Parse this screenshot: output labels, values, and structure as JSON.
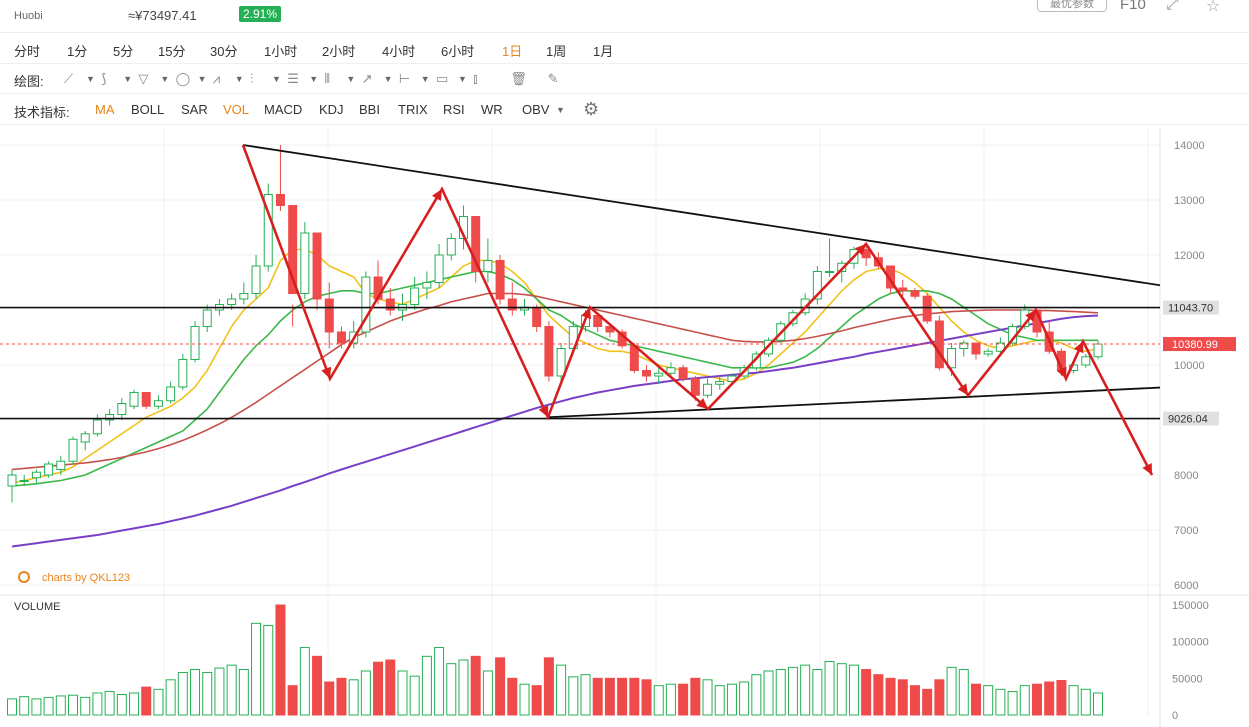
{
  "header": {
    "exchange": "Huobi",
    "cny_price": "≈¥73497.41",
    "change": "2.91%",
    "button_label": "最优参数",
    "f10_label": "F10"
  },
  "intervals": {
    "items": [
      "分时",
      "1分",
      "5分",
      "15分",
      "30分",
      "1小时",
      "2小时",
      "4小时",
      "6小时",
      "1日",
      "1周",
      "1月"
    ],
    "active": "1日"
  },
  "drawing": {
    "label": "绘图:",
    "tools": [
      "line-tool-icon",
      "ray-tool-icon",
      "polyline-tool-icon",
      "shape-tool-icon",
      "pattern-tool-icon",
      "fork-tool-icon",
      "fib-tool-icon",
      "channel-tool-icon",
      "arrow-tool-icon",
      "range-tool-icon",
      "comment-tool-icon",
      "bars-tool-icon",
      "trash-icon",
      "eraser-icon"
    ]
  },
  "indicators": {
    "label": "技术指标:",
    "items": [
      "MA",
      "BOLL",
      "SAR",
      "VOL",
      "MACD",
      "KDJ",
      "BBI",
      "TRIX",
      "RSI",
      "WR",
      "OBV"
    ],
    "active": [
      "MA",
      "VOL"
    ]
  },
  "colors": {
    "up": "#26b055",
    "down": "#ef4b4b",
    "ma5": "#f2c21b",
    "ma10": "#3cb84a",
    "ma30": "#c8504a",
    "ma60": "#7a3fc8",
    "annotation": "#d81f1f",
    "pattern": "#111111"
  },
  "chart_data": {
    "type": "candlestick",
    "watermark": "charts by QKL123",
    "price_axis": {
      "ticks": [
        14000,
        13000,
        12000,
        10000,
        8000,
        7000,
        6000
      ],
      "range": [
        5800,
        14300
      ]
    },
    "price_labels": [
      {
        "value": 11043.7,
        "text": "11043.70",
        "kind": "resistance"
      },
      {
        "value": 10380.99,
        "text": "10380.99",
        "kind": "current"
      },
      {
        "value": 9026.04,
        "text": "9026.04",
        "kind": "support"
      }
    ],
    "volume_axis": {
      "label": "VOLUME",
      "ticks": [
        150000,
        100000,
        50000,
        0
      ],
      "range": [
        0,
        150000
      ]
    },
    "candles_ohlc": [
      [
        7800,
        8100,
        7500,
        8000
      ],
      [
        7900,
        8000,
        7800,
        7900
      ],
      [
        7950,
        8100,
        7850,
        8050
      ],
      [
        8000,
        8250,
        7950,
        8200
      ],
      [
        8100,
        8350,
        8000,
        8250
      ],
      [
        8250,
        8700,
        8200,
        8650
      ],
      [
        8600,
        8800,
        8450,
        8750
      ],
      [
        8750,
        9100,
        8700,
        9000
      ],
      [
        9000,
        9200,
        8900,
        9100
      ],
      [
        9100,
        9400,
        9000,
        9300
      ],
      [
        9250,
        9550,
        9200,
        9500
      ],
      [
        9500,
        9400,
        9200,
        9250
      ],
      [
        9250,
        9450,
        9200,
        9350
      ],
      [
        9350,
        9700,
        9300,
        9600
      ],
      [
        9600,
        10200,
        9550,
        10100
      ],
      [
        10100,
        10800,
        10050,
        10700
      ],
      [
        10700,
        11100,
        10600,
        11000
      ],
      [
        11000,
        11200,
        10900,
        11100
      ],
      [
        11100,
        11300,
        11000,
        11200
      ],
      [
        11200,
        11500,
        11100,
        11300
      ],
      [
        11300,
        12000,
        11200,
        11800
      ],
      [
        11800,
        13300,
        11700,
        13100
      ],
      [
        13100,
        14000,
        12800,
        12900
      ],
      [
        12900,
        11100,
        10700,
        11300
      ],
      [
        11300,
        12600,
        11200,
        12400
      ],
      [
        12400,
        12300,
        11000,
        11200
      ],
      [
        11200,
        11500,
        10300,
        10600
      ],
      [
        10600,
        10700,
        10300,
        10400
      ],
      [
        10400,
        10800,
        10300,
        10600
      ],
      [
        10600,
        11700,
        10500,
        11600
      ],
      [
        11600,
        11900,
        11100,
        11200
      ],
      [
        11200,
        11400,
        10900,
        11000
      ],
      [
        11000,
        11300,
        10800,
        11100
      ],
      [
        11100,
        11600,
        11000,
        11400
      ],
      [
        11400,
        11700,
        11200,
        11500
      ],
      [
        11500,
        12200,
        11400,
        12000
      ],
      [
        12000,
        12400,
        11900,
        12300
      ],
      [
        12300,
        12900,
        12100,
        12700
      ],
      [
        12700,
        12100,
        11500,
        11700
      ],
      [
        11700,
        12300,
        11500,
        11900
      ],
      [
        11900,
        12000,
        11100,
        11200
      ],
      [
        11200,
        11500,
        10900,
        11000
      ],
      [
        11000,
        11200,
        10900,
        11050
      ],
      [
        11050,
        11100,
        10600,
        10700
      ],
      [
        10700,
        10800,
        9700,
        9800
      ],
      [
        9800,
        10400,
        9700,
        10300
      ],
      [
        10300,
        10800,
        10200,
        10700
      ],
      [
        10700,
        11000,
        10600,
        10900
      ],
      [
        10900,
        10950,
        10600,
        10700
      ],
      [
        10700,
        10750,
        10500,
        10600
      ],
      [
        10600,
        10650,
        10300,
        10350
      ],
      [
        10350,
        10400,
        9850,
        9900
      ],
      [
        9900,
        10000,
        9700,
        9800
      ],
      [
        9800,
        9950,
        9650,
        9850
      ],
      [
        9850,
        10050,
        9800,
        9950
      ],
      [
        9950,
        10000,
        9700,
        9750
      ],
      [
        9750,
        9800,
        9350,
        9450
      ],
      [
        9450,
        9750,
        9400,
        9650
      ],
      [
        9650,
        9800,
        9550,
        9700
      ],
      [
        9700,
        9850,
        9650,
        9800
      ],
      [
        9800,
        10000,
        9750,
        9950
      ],
      [
        9950,
        10250,
        9900,
        10200
      ],
      [
        10200,
        10500,
        10150,
        10450
      ],
      [
        10450,
        10800,
        10400,
        10750
      ],
      [
        10750,
        11000,
        10700,
        10950
      ],
      [
        10950,
        11300,
        10900,
        11200
      ],
      [
        11200,
        11800,
        11100,
        11700
      ],
      [
        11700,
        12300,
        11600,
        11700
      ],
      [
        11700,
        11900,
        11500,
        11850
      ],
      [
        11850,
        12150,
        11750,
        12100
      ],
      [
        12100,
        12200,
        11800,
        11950
      ],
      [
        11950,
        12050,
        11750,
        11800
      ],
      [
        11800,
        11650,
        11300,
        11400
      ],
      [
        11400,
        11550,
        11250,
        11350
      ],
      [
        11350,
        11400,
        11200,
        11250
      ],
      [
        11250,
        11300,
        10750,
        10800
      ],
      [
        10800,
        10900,
        9900,
        9950
      ],
      [
        9950,
        10400,
        9800,
        10300
      ],
      [
        10300,
        10450,
        10150,
        10400
      ],
      [
        10400,
        10350,
        10100,
        10200
      ],
      [
        10200,
        10300,
        10150,
        10250
      ],
      [
        10250,
        10500,
        10200,
        10400
      ],
      [
        10400,
        10750,
        10350,
        10700
      ],
      [
        10700,
        11100,
        10650,
        11000
      ],
      [
        11000,
        10950,
        10500,
        10600
      ],
      [
        10600,
        10800,
        10200,
        10250
      ],
      [
        10250,
        10300,
        9800,
        9900
      ],
      [
        9900,
        10100,
        9850,
        10000
      ],
      [
        10000,
        10200,
        9950,
        10150
      ],
      [
        10150,
        10450,
        10100,
        10380.99
      ]
    ],
    "volumes": [
      22000,
      25000,
      22000,
      24000,
      26000,
      27000,
      24000,
      30000,
      32000,
      28000,
      30000,
      38000,
      35000,
      48000,
      58000,
      62000,
      58000,
      64000,
      68000,
      62000,
      125000,
      122000,
      150000,
      40000,
      92000,
      80000,
      45000,
      50000,
      48000,
      60000,
      72000,
      75000,
      60000,
      53000,
      80000,
      92000,
      70000,
      75000,
      80000,
      60000,
      78000,
      50000,
      42000,
      40000,
      78000,
      68000,
      52000,
      55000,
      50000,
      50000,
      50000,
      50000,
      48000,
      40000,
      42000,
      42000,
      50000,
      48000,
      40000,
      42000,
      45000,
      55000,
      60000,
      62000,
      65000,
      68000,
      62000,
      73000,
      70000,
      68000,
      62000,
      55000,
      50000,
      48000,
      40000,
      35000,
      48000,
      65000,
      62000,
      42000,
      40000,
      35000,
      32000,
      40000,
      42000,
      45000,
      47000,
      40000,
      35000,
      30000
    ],
    "moving_averages": [
      {
        "name": "MA5",
        "values": [
          7850,
          7900,
          7950,
          8000,
          8050,
          8150,
          8300,
          8450,
          8600,
          8750,
          8900,
          9050,
          9150,
          9250,
          9400,
          9600,
          9900,
          10300,
          10700,
          11000,
          11200,
          11400,
          11900,
          12100,
          12100,
          12000,
          11800,
          11700,
          11600,
          11300,
          11200,
          11150,
          11100,
          11200,
          11300,
          11400,
          11600,
          11800,
          11900,
          11900,
          11850,
          11700,
          11500,
          11200,
          10900,
          10700,
          10500,
          10400,
          10300,
          10250,
          10250,
          10200,
          10100,
          10000,
          9950,
          9900,
          9850,
          9800,
          9750,
          9700,
          9750,
          9850,
          10000,
          10200,
          10400,
          10600,
          10850,
          11100,
          11350,
          11550,
          11700,
          11750,
          11750,
          11650,
          11500,
          11300,
          11050,
          10800,
          10600,
          10450,
          10350,
          10300,
          10350,
          10400,
          10450,
          10450,
          10400,
          10300,
          10250,
          10300
        ]
      },
      {
        "name": "MA10",
        "values": [
          7800,
          7820,
          7840,
          7870,
          7900,
          7950,
          8000,
          8100,
          8200,
          8300,
          8400,
          8500,
          8600,
          8700,
          8800,
          9000,
          9200,
          9500,
          9800,
          10100,
          10350,
          10550,
          10800,
          11000,
          11150,
          11250,
          11300,
          11350,
          11350,
          11300,
          11300,
          11350,
          11400,
          11450,
          11500,
          11550,
          11600,
          11650,
          11700,
          11700,
          11650,
          11550,
          11400,
          11200,
          11000,
          10900,
          10750,
          10650,
          10550,
          10450,
          10400,
          10350,
          10300,
          10250,
          10200,
          10150,
          10100,
          10050,
          10000,
          9950,
          9950,
          9950,
          9950,
          10000,
          10050,
          10150,
          10300,
          10500,
          10700,
          10900,
          11050,
          11200,
          11300,
          11350,
          11350,
          11350,
          11300,
          11200,
          11050,
          10900,
          10750,
          10650,
          10550,
          10500,
          10450,
          10450,
          10450,
          10450,
          10450,
          10450
        ]
      },
      {
        "name": "MA30",
        "values": [
          8100,
          8120,
          8140,
          8160,
          8180,
          8200,
          8220,
          8250,
          8280,
          8320,
          8370,
          8420,
          8480,
          8550,
          8630,
          8720,
          8820,
          8930,
          9050,
          9180,
          9320,
          9470,
          9620,
          9770,
          9920,
          10070,
          10220,
          10370,
          10500,
          10600,
          10700,
          10800,
          10880,
          10950,
          11020,
          11080,
          11150,
          11200,
          11250,
          11300,
          11300,
          11300,
          11280,
          11250,
          11200,
          11150,
          11100,
          11050,
          11000,
          10950,
          10900,
          10850,
          10800,
          10750,
          10700,
          10650,
          10600,
          10550,
          10500,
          10450,
          10430,
          10420,
          10420,
          10430,
          10450,
          10480,
          10520,
          10570,
          10620,
          10680,
          10730,
          10780,
          10830,
          10870,
          10900,
          10930,
          10950,
          10970,
          10980,
          10990,
          11000,
          11000,
          11000,
          11000,
          10990,
          10990,
          10980,
          10970,
          10960,
          10950
        ]
      },
      {
        "name": "MA60",
        "values": [
          6700,
          6730,
          6760,
          6790,
          6820,
          6850,
          6880,
          6910,
          6950,
          6990,
          7030,
          7070,
          7110,
          7160,
          7210,
          7260,
          7320,
          7380,
          7440,
          7510,
          7580,
          7650,
          7720,
          7800,
          7870,
          7950,
          8030,
          8100,
          8170,
          8240,
          8310,
          8380,
          8450,
          8520,
          8590,
          8660,
          8730,
          8800,
          8870,
          8940,
          9010,
          9080,
          9150,
          9220,
          9280,
          9340,
          9400,
          9450,
          9500,
          9540,
          9580,
          9620,
          9650,
          9680,
          9710,
          9740,
          9760,
          9780,
          9800,
          9820,
          9840,
          9860,
          9890,
          9920,
          9950,
          9990,
          10030,
          10070,
          10110,
          10150,
          10200,
          10240,
          10280,
          10320,
          10360,
          10400,
          10440,
          10480,
          10520,
          10560,
          10600,
          10640,
          10680,
          10720,
          10760,
          10800,
          10840,
          10870,
          10890,
          10900
        ]
      }
    ],
    "levels": [
      11043.7,
      9026.04
    ]
  }
}
